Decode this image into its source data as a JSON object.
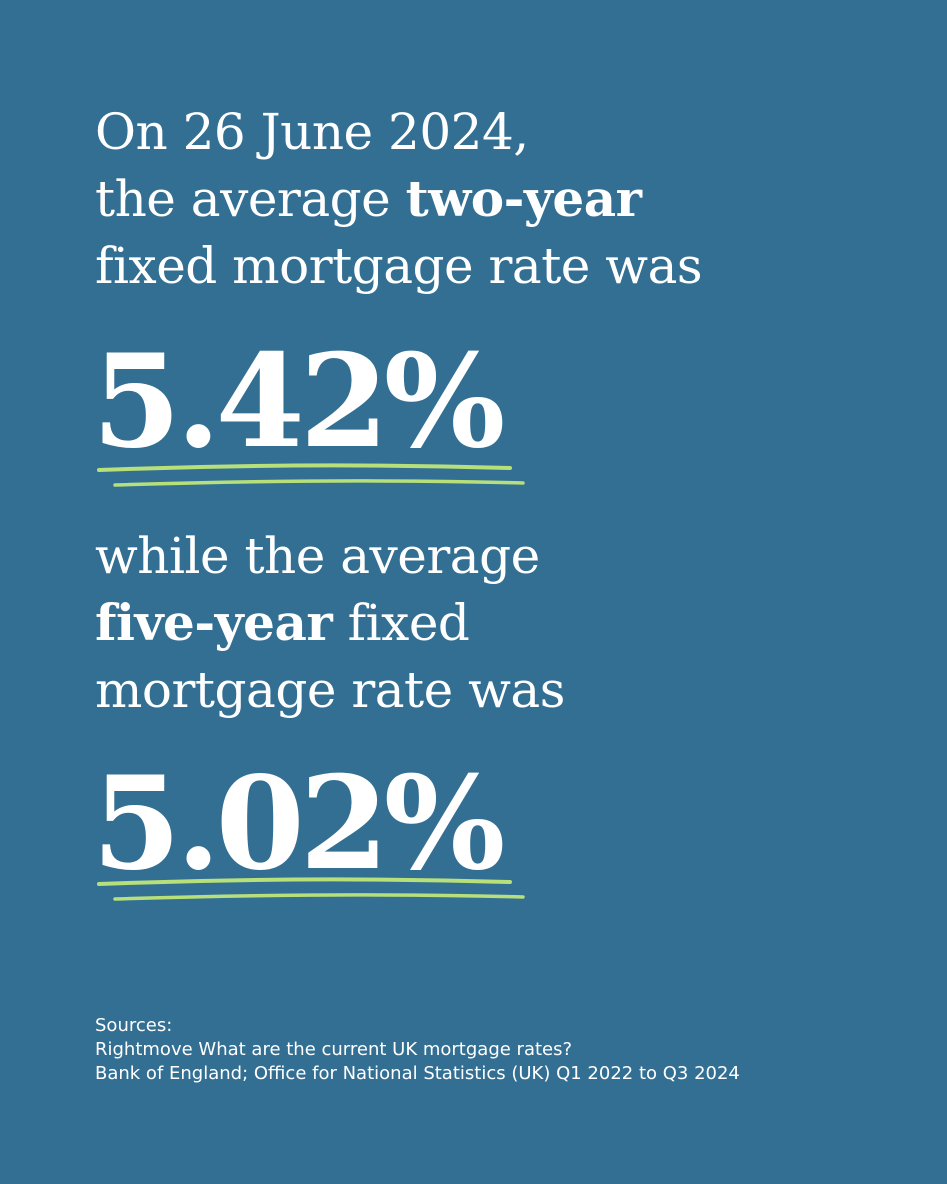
{
  "colors": {
    "background": "#336f93",
    "text": "#ffffff",
    "highlight": "#b7e07a"
  },
  "intro": {
    "line1": "On 26 June 2024,",
    "line2_prefix": "the average ",
    "line2_bold": "two-year",
    "line3": "fixed mortgage rate was"
  },
  "rate_two_year": "5.42%",
  "middle": {
    "line1": "while the average",
    "line2_bold": "five-year",
    "line2_suffix": " fixed",
    "line3": "mortgage rate was"
  },
  "rate_five_year": "5.02%",
  "sources": {
    "heading": "Sources:",
    "items": [
      "Rightmove What are the current UK mortgage rates?",
      "Bank of England; Office for National Statistics (UK) Q1 2022 to Q3 2024"
    ]
  }
}
